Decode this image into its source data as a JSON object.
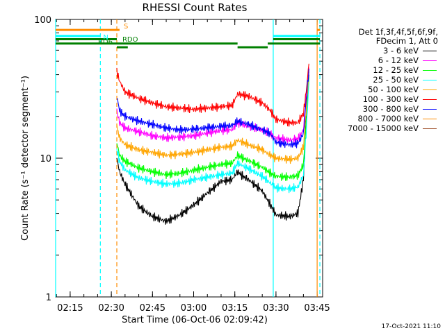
{
  "chart_data": {
    "type": "line",
    "title": "RHESSI Count Rates",
    "xlabel": "Start Time (06-Oct-06 02:09:42)",
    "ylabel": "Count Rate (s⁻¹ detector segment⁻¹)",
    "ylog": true,
    "ylim": [
      1,
      100
    ],
    "xlim": [
      "02:09:42",
      "03:47:00"
    ],
    "x_ticks": [
      "02:15",
      "02:30",
      "02:45",
      "03:00",
      "03:15",
      "03:30",
      "03:45"
    ],
    "y_ticks": [
      "1",
      "10",
      "100"
    ],
    "legend_header": [
      "Det 1f,3f,4f,5f,6f,9f,",
      "FDecim 1, Att 0"
    ],
    "legend_placement": "right",
    "series": [
      {
        "name": "3 - 6 keV",
        "color": "#000000",
        "x": [
          "02:32",
          "02:33",
          "02:35",
          "02:40",
          "02:45",
          "02:50",
          "02:55",
          "03:00",
          "03:05",
          "03:10",
          "03:14",
          "03:16",
          "03:18",
          "03:20",
          "03:25",
          "03:28",
          "03:30",
          "03:35",
          "03:38",
          "03:40",
          "03:41",
          "03:42"
        ],
        "y": [
          10,
          8,
          6.5,
          4.5,
          3.8,
          3.5,
          3.9,
          4.6,
          5.6,
          6.8,
          7,
          8,
          7.4,
          7,
          5.8,
          4.6,
          3.9,
          3.8,
          4,
          7,
          20,
          40
        ]
      },
      {
        "name": "6 - 12 keV",
        "color": "#ff00ff",
        "x": [
          "02:32",
          "02:33",
          "02:35",
          "02:40",
          "02:45",
          "02:50",
          "02:55",
          "03:00",
          "03:05",
          "03:10",
          "03:14",
          "03:16",
          "03:18",
          "03:20",
          "03:25",
          "03:28",
          "03:30",
          "03:35",
          "03:38",
          "03:40",
          "03:41",
          "03:42"
        ],
        "y": [
          22,
          18,
          16.5,
          15.5,
          14.5,
          14,
          14.2,
          14.5,
          15.2,
          15.8,
          16,
          18,
          17.5,
          17,
          16,
          15,
          14,
          13.5,
          13.8,
          16,
          28,
          45
        ]
      },
      {
        "name": "12 - 25 keV",
        "color": "#00ff00",
        "x": [
          "02:32",
          "02:33",
          "02:35",
          "02:40",
          "02:45",
          "02:50",
          "02:55",
          "03:00",
          "03:05",
          "03:10",
          "03:14",
          "03:16",
          "03:18",
          "03:20",
          "03:25",
          "03:28",
          "03:30",
          "03:35",
          "03:38",
          "03:40",
          "03:41",
          "03:42"
        ],
        "y": [
          13,
          10.5,
          9.5,
          8.5,
          8,
          7.6,
          7.8,
          8.2,
          8.6,
          9,
          9.2,
          10.5,
          10,
          9.6,
          8.6,
          7.8,
          7.4,
          7.3,
          7.5,
          9,
          18,
          38
        ]
      },
      {
        "name": "25 - 50 keV",
        "color": "#00ffff",
        "x": [
          "02:32",
          "02:33",
          "02:35",
          "02:40",
          "02:45",
          "02:50",
          "02:55",
          "03:00",
          "03:05",
          "03:10",
          "03:14",
          "03:16",
          "03:18",
          "03:20",
          "03:25",
          "03:28",
          "03:30",
          "03:35",
          "03:38",
          "03:40",
          "03:41",
          "03:42"
        ],
        "y": [
          11.5,
          9.5,
          8.2,
          7.2,
          6.8,
          6.5,
          6.6,
          7,
          7.3,
          7.6,
          7.8,
          9.2,
          8.8,
          8.4,
          7.4,
          6.6,
          6.1,
          6,
          6.2,
          7.5,
          15,
          35
        ]
      },
      {
        "name": "50 - 100 keV",
        "color": "#ffa500",
        "x": [
          "02:32",
          "02:33",
          "02:35",
          "02:40",
          "02:45",
          "02:50",
          "02:55",
          "03:00",
          "03:05",
          "03:10",
          "03:14",
          "03:16",
          "03:18",
          "03:20",
          "03:25",
          "03:28",
          "03:30",
          "03:35",
          "03:38",
          "03:40",
          "03:41",
          "03:42"
        ],
        "y": [
          17,
          14,
          12.5,
          11.5,
          11,
          10.5,
          10.7,
          11,
          11.5,
          12,
          12.2,
          13.5,
          13,
          12.5,
          11.5,
          10.5,
          10,
          9.8,
          10,
          12,
          22,
          42
        ]
      },
      {
        "name": "100 - 300 keV",
        "color": "#ff0000",
        "x": [
          "02:32",
          "02:33",
          "02:35",
          "02:40",
          "02:45",
          "02:50",
          "02:55",
          "03:00",
          "03:05",
          "03:10",
          "03:14",
          "03:16",
          "03:18",
          "03:20",
          "03:25",
          "03:28",
          "03:30",
          "03:35",
          "03:38",
          "03:40",
          "03:41",
          "03:42"
        ],
        "y": [
          42,
          36,
          30,
          27,
          25,
          23.5,
          23,
          22.5,
          23,
          23.5,
          24,
          29,
          28.5,
          28,
          25,
          22,
          19,
          18,
          18,
          21,
          30,
          48
        ]
      },
      {
        "name": "300 - 800 keV",
        "color": "#0000ff",
        "x": [
          "02:32",
          "02:33",
          "02:35",
          "02:40",
          "02:45",
          "02:50",
          "02:55",
          "03:00",
          "03:05",
          "03:10",
          "03:14",
          "03:16",
          "03:18",
          "03:20",
          "03:25",
          "03:28",
          "03:30",
          "03:35",
          "03:38",
          "03:40",
          "03:41",
          "03:42"
        ],
        "y": [
          28,
          22,
          20,
          18.5,
          17.5,
          16.5,
          16,
          16.2,
          16.6,
          17,
          17.2,
          18.5,
          18,
          17.5,
          16,
          15,
          13,
          12.5,
          12.8,
          15,
          26,
          44
        ]
      },
      {
        "name": "800 - 7000 keV",
        "color": "#ff8c00",
        "x": [],
        "y": []
      },
      {
        "name": "7000 - 15000 keV",
        "color": "#a0522d",
        "x": [],
        "y": []
      }
    ],
    "state_bars": [
      {
        "label": "S",
        "color": "#ff8c00",
        "y_level": 84,
        "segments": [
          [
            "02:09:42",
            "02:33"
          ],
          [
            "03:45",
            "03:46"
          ]
        ]
      },
      {
        "label": "N",
        "color": "#00ffff",
        "y_level": 76,
        "segments": [
          [
            "02:09:42",
            "02:26"
          ],
          [
            "03:29",
            "03:46"
          ]
        ]
      },
      {
        "label": "RD6",
        "color": "#008000",
        "y_level": 72,
        "segments": [
          [
            "02:09:42",
            "02:32"
          ],
          [
            "03:29",
            "03:46"
          ]
        ]
      },
      {
        "label": "RDO",
        "color": "#008000",
        "y_level": 67,
        "segments": [
          [
            "02:09:42",
            "03:16"
          ],
          [
            "03:27",
            "03:46"
          ]
        ]
      },
      {
        "label": "",
        "color": "#008000",
        "y_level": 63,
        "segments": [
          [
            "02:32",
            "02:36"
          ],
          [
            "03:16",
            "03:27"
          ]
        ]
      }
    ],
    "vertical_markers": [
      {
        "x": "02:26",
        "color": "#00ffff",
        "style": "dashed"
      },
      {
        "x": "02:32",
        "color": "#ff8c00",
        "style": "dashed"
      },
      {
        "x": "02:09:42",
        "color": "#00ffff",
        "style": "solid"
      },
      {
        "x": "03:29",
        "color": "#00ffff",
        "style": "solid"
      },
      {
        "x": "03:45",
        "color": "#ff8c00",
        "style": "solid"
      },
      {
        "x": "03:46",
        "color": "#00ffff",
        "style": "dashed"
      }
    ]
  },
  "footer": {
    "timestamp": "17-Oct-2021 11:10"
  }
}
